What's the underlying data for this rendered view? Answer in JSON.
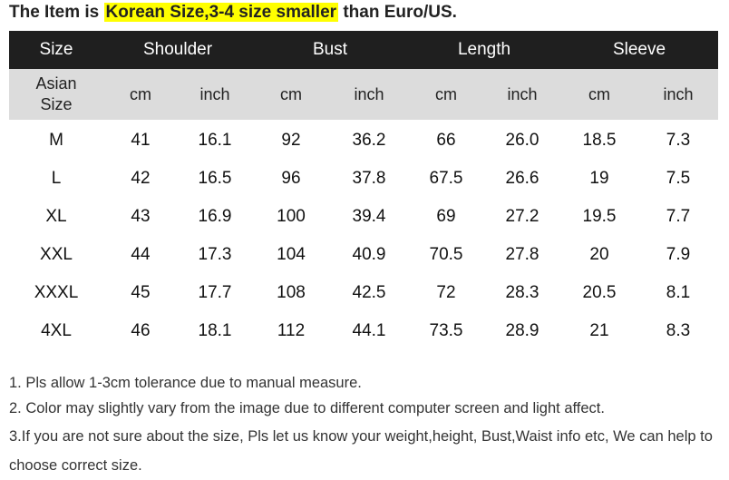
{
  "heading": {
    "prefix": "The Item is ",
    "highlight": "Korean Size,3-4 size smaller",
    "suffix": " than Euro/US."
  },
  "table": {
    "group_headers": [
      "Size",
      "Shoulder",
      "Bust",
      "Length",
      "Sleeve"
    ],
    "size_column_subheader": "Asian Size",
    "unit_cm": "cm",
    "unit_inch": "inch",
    "rows": [
      {
        "size": "M",
        "shoulder_cm": "41",
        "shoulder_inch": "16.1",
        "bust_cm": "92",
        "bust_inch": "36.2",
        "length_cm": "66",
        "length_inch": "26.0",
        "sleeve_cm": "18.5",
        "sleeve_inch": "7.3"
      },
      {
        "size": "L",
        "shoulder_cm": "42",
        "shoulder_inch": "16.5",
        "bust_cm": "96",
        "bust_inch": "37.8",
        "length_cm": "67.5",
        "length_inch": "26.6",
        "sleeve_cm": "19",
        "sleeve_inch": "7.5"
      },
      {
        "size": "XL",
        "shoulder_cm": "43",
        "shoulder_inch": "16.9",
        "bust_cm": "100",
        "bust_inch": "39.4",
        "length_cm": "69",
        "length_inch": "27.2",
        "sleeve_cm": "19.5",
        "sleeve_inch": "7.7"
      },
      {
        "size": "XXL",
        "shoulder_cm": "44",
        "shoulder_inch": "17.3",
        "bust_cm": "104",
        "bust_inch": "40.9",
        "length_cm": "70.5",
        "length_inch": "27.8",
        "sleeve_cm": "20",
        "sleeve_inch": "7.9"
      },
      {
        "size": "XXXL",
        "shoulder_cm": "45",
        "shoulder_inch": "17.7",
        "bust_cm": "108",
        "bust_inch": "42.5",
        "length_cm": "72",
        "length_inch": "28.3",
        "sleeve_cm": "20.5",
        "sleeve_inch": "8.1"
      },
      {
        "size": "4XL",
        "shoulder_cm": "46",
        "shoulder_inch": "18.1",
        "bust_cm": "112",
        "bust_inch": "44.1",
        "length_cm": "73.5",
        "length_inch": "28.9",
        "sleeve_cm": "21",
        "sleeve_inch": "8.3"
      }
    ]
  },
  "notes": [
    "1. Pls allow 1-3cm tolerance due to manual measure.",
    "2. Color may slightly vary from the image due to different computer screen and light affect.",
    "3.If you are not sure about the size, Pls let us know your weight,height, Bust,Waist info etc, We can help to choose correct size."
  ],
  "colors": {
    "header_bg": "#1f1f1f",
    "subheader_bg": "#dcdcdc",
    "highlight": "#ffff00"
  }
}
